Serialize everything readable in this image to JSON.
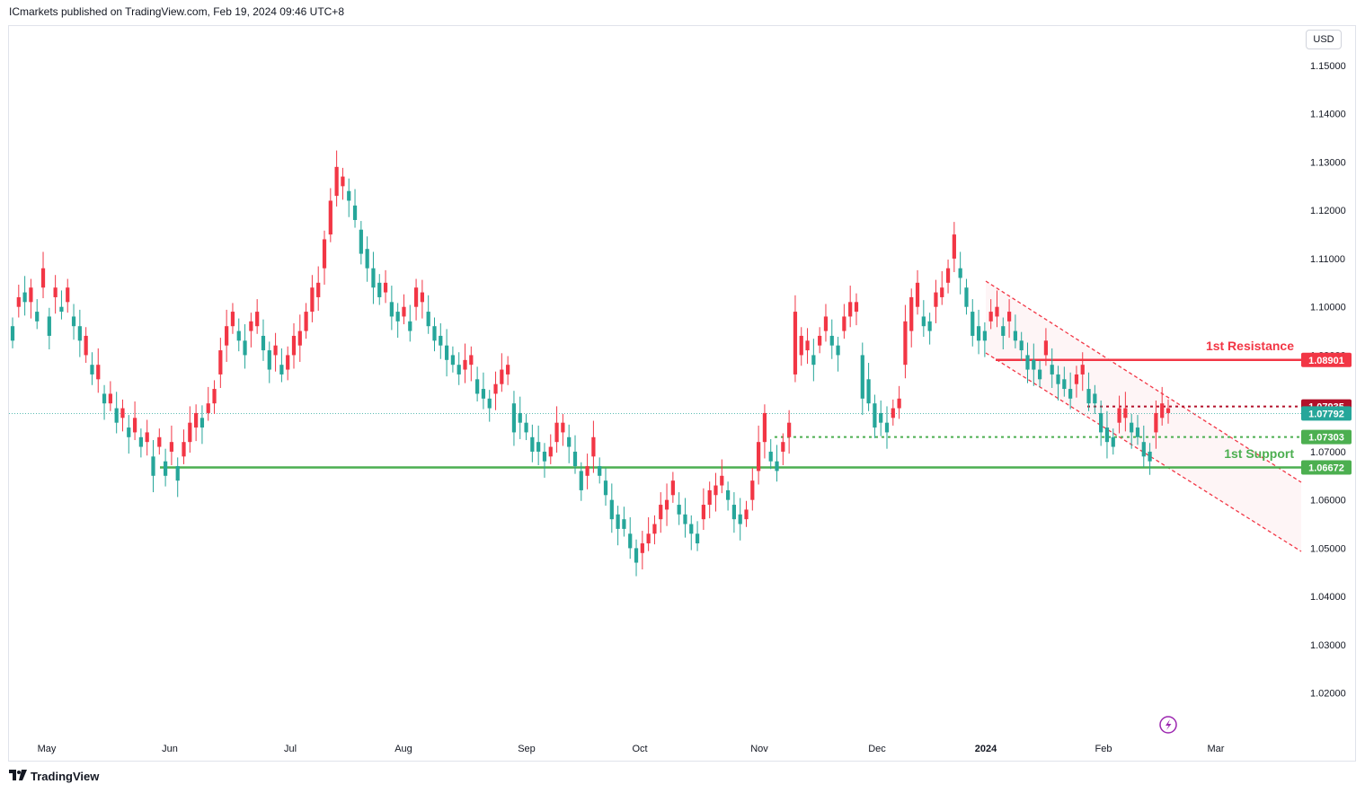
{
  "header": {
    "published": "ICmarkets published on TradingView.com, Feb 19, 2024 09:46 UTC+8"
  },
  "toolbar": {
    "currency": "USD"
  },
  "footer": {
    "brand": "TradingView",
    "logo_icon": "tradingview-logo-icon"
  },
  "colors": {
    "up": "#26a69a",
    "down": "#f23645",
    "resistance": "#f23645",
    "support": "#4caf50",
    "channel": "#f23645",
    "text": "#131722",
    "grid_border": "#e0e3eb"
  },
  "chart_data": {
    "type": "candlestick",
    "symbol_currency": "USD",
    "ylim": [
      1.011,
      1.158
    ],
    "y_ticks": [
      "1.15000",
      "1.14000",
      "1.13000",
      "1.12000",
      "1.11000",
      "1.10000",
      "1.09000",
      "1.07000",
      "1.06000",
      "1.05000",
      "1.04000",
      "1.03000",
      "1.02000"
    ],
    "x_ticks": [
      "May",
      "Jun",
      "Jul",
      "Aug",
      "Sep",
      "Oct",
      "Nov",
      "Dec",
      "2024",
      "Feb",
      "Mar"
    ],
    "series_close": [
      1.096,
      1.1,
      1.103,
      1.101,
      1.099,
      1.104,
      1.098,
      1.102,
      1.1,
      1.101,
      1.098,
      1.096,
      1.09,
      1.088,
      1.085,
      1.082,
      1.08,
      1.079,
      1.077,
      1.075,
      1.074,
      1.073,
      1.072,
      1.069,
      1.071,
      1.068,
      1.07,
      1.067,
      1.069,
      1.072,
      1.075,
      1.077,
      1.078,
      1.08,
      1.086,
      1.092,
      1.096,
      1.095,
      1.093,
      1.095,
      1.096,
      1.094,
      1.091,
      1.09,
      1.088,
      1.087,
      1.09,
      1.092,
      1.095,
      1.099,
      1.102,
      1.108,
      1.115,
      1.123,
      1.125,
      1.124,
      1.121,
      1.116,
      1.112,
      1.108,
      1.105,
      1.103,
      1.101,
      1.099,
      1.098,
      1.097,
      1.1,
      1.101,
      1.099,
      1.096,
      1.094,
      1.092,
      1.09,
      1.088,
      1.087,
      1.088,
      1.085,
      1.083,
      1.081,
      1.082,
      1.084,
      1.086,
      1.08,
      1.078,
      1.076,
      1.073,
      1.072,
      1.07,
      1.069,
      1.072,
      1.074,
      1.073,
      1.07,
      1.066,
      1.065,
      1.069,
      1.067,
      1.064,
      1.06,
      1.057,
      1.056,
      1.053,
      1.05,
      1.049,
      1.051,
      1.053,
      1.056,
      1.058,
      1.061,
      1.059,
      1.057,
      1.055,
      1.053,
      1.056,
      1.059,
      1.061,
      1.063,
      1.062,
      1.059,
      1.057,
      1.056,
      1.06,
      1.066,
      1.072,
      1.07,
      1.068,
      1.07,
      1.073,
      1.086,
      1.09,
      1.091,
      1.09,
      1.092,
      1.095,
      1.094,
      1.092,
      1.095,
      1.098,
      1.099,
      1.09,
      1.085,
      1.08,
      1.078,
      1.076,
      1.077,
      1.079,
      1.088,
      1.095,
      1.1,
      1.098,
      1.097,
      1.1,
      1.102,
      1.105,
      1.11,
      1.108,
      1.104,
      1.099,
      1.096,
      1.095,
      1.097,
      1.098,
      1.096,
      1.097,
      1.095,
      1.093,
      1.09,
      1.089,
      1.087,
      1.09,
      1.088,
      1.086,
      1.085,
      1.083,
      1.084,
      1.086,
      1.083,
      1.082,
      1.078,
      1.075,
      1.073,
      1.076,
      1.077,
      1.076,
      1.075,
      1.072,
      1.07,
      1.074,
      1.077,
      1.078
    ],
    "series_open_offset": [
      -0.003,
      0.002,
      -0.002,
      0.003,
      -0.002,
      0.004,
      -0.004,
      0.002,
      -0.001,
      0.003,
      -0.002,
      -0.003,
      0.004,
      -0.002,
      0.003,
      -0.002,
      0.002,
      -0.003,
      0.002,
      -0.002,
      0.003,
      -0.002,
      0.002,
      -0.004,
      0.002,
      -0.003,
      0.002,
      -0.003,
      0.003,
      0.004,
      0.003,
      -0.002,
      0.002,
      0.003,
      0.005,
      0.004,
      0.003,
      -0.002,
      -0.003,
      0.002,
      0.003,
      -0.003,
      -0.004,
      0.002,
      -0.002,
      0.003,
      0.004,
      0.003,
      0.004,
      0.005,
      0.003,
      0.006,
      0.007,
      0.006,
      0.002,
      -0.002,
      -0.003,
      -0.005,
      -0.004,
      -0.004,
      -0.003,
      0.002,
      -0.003,
      -0.002,
      0.002,
      -0.002,
      0.004,
      0.002,
      -0.003,
      -0.003,
      -0.002,
      -0.003,
      -0.002,
      -0.002,
      0.002,
      0.002,
      -0.003,
      -0.002,
      -0.002,
      0.002,
      0.003,
      0.002,
      -0.006,
      -0.002,
      -0.002,
      -0.003,
      -0.002,
      -0.002,
      0.002,
      0.004,
      0.002,
      -0.002,
      -0.003,
      -0.004,
      0.002,
      0.004,
      -0.002,
      -0.003,
      -0.004,
      -0.003,
      -0.002,
      -0.003,
      -0.003,
      0.002,
      0.002,
      0.002,
      0.003,
      0.002,
      0.003,
      -0.002,
      -0.002,
      -0.002,
      -0.002,
      0.003,
      0.003,
      0.002,
      0.002,
      -0.002,
      -0.003,
      -0.002,
      0.002,
      0.004,
      0.006,
      0.006,
      -0.002,
      -0.002,
      0.002,
      0.003,
      0.013,
      0.004,
      0.002,
      -0.002,
      0.002,
      0.003,
      -0.002,
      -0.002,
      0.003,
      0.003,
      0.002,
      -0.009,
      -0.005,
      -0.005,
      -0.002,
      -0.002,
      0.002,
      0.002,
      0.009,
      0.007,
      0.005,
      -0.002,
      -0.002,
      0.003,
      0.002,
      0.003,
      0.005,
      -0.002,
      -0.004,
      -0.005,
      -0.003,
      -0.002,
      0.002,
      0.002,
      -0.002,
      0.002,
      -0.002,
      -0.002,
      -0.003,
      -0.002,
      -0.002,
      0.003,
      -0.002,
      -0.002,
      -0.002,
      -0.002,
      0.002,
      0.002,
      -0.003,
      -0.002,
      -0.004,
      -0.003,
      -0.002,
      0.003,
      0.002,
      -0.002,
      -0.002,
      -0.003,
      -0.002,
      0.004,
      0.003,
      0.001
    ],
    "horizontal_levels": [
      {
        "name": "1st Resistance",
        "value": 1.08901,
        "label": "1.08901",
        "style": "solid",
        "color": "#f23645"
      },
      {
        "name": "",
        "value": 1.07935,
        "label": "1.07935",
        "style": "dotted",
        "color": "#b2102a"
      },
      {
        "name": "",
        "value": 1.07792,
        "label": "1.07792",
        "style": "current",
        "color": "#26a69a"
      },
      {
        "name": "",
        "value": 1.07303,
        "label": "1.07303",
        "style": "dotted",
        "color": "#4caf50"
      },
      {
        "name": "1st Support",
        "value": 1.06672,
        "label": "1.06672",
        "style": "solid",
        "color": "#4caf50"
      }
    ],
    "annotations": {
      "resistance_text": "1st Resistance",
      "support_text": "1st Support"
    },
    "grid": false,
    "legend": "none"
  }
}
